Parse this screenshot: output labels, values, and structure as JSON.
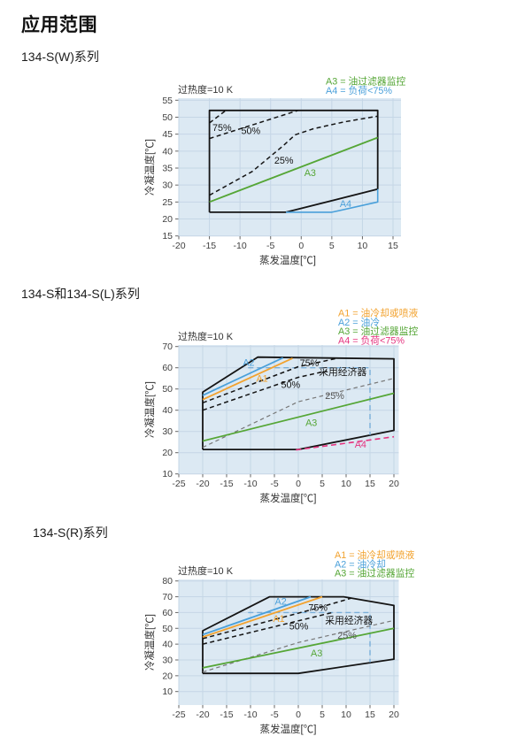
{
  "page": {
    "title": "应用范围"
  },
  "sections": [
    {
      "heading": "134-S(W)系列"
    },
    {
      "heading": "134-S和134-S(L)系列"
    },
    {
      "heading": "134-S(R)系列"
    }
  ],
  "colors": {
    "green": "#55a636",
    "blue": "#4aa0da",
    "orange": "#f2a22e",
    "magenta": "#e5337f",
    "economizer_blue": "#79aed9",
    "gray_dash": "#777777",
    "line_black": "#141414",
    "panel_bg": "#dce9f3",
    "grid": "#c5d6e6",
    "text": "#404040"
  },
  "chart_data": [
    {
      "name": "134-S(W)",
      "type": "line",
      "title": "过热度=10 K",
      "xlabel": "蒸发温度[℃]",
      "ylabel": "冷凝温度[℃]",
      "xlim": [
        -20,
        15
      ],
      "ylim": [
        15,
        55
      ],
      "x_ticks": [
        -20,
        -15,
        -10,
        -5,
        0,
        5,
        10,
        15
      ],
      "y_ticks": [
        15,
        20,
        25,
        30,
        35,
        40,
        45,
        50,
        55
      ],
      "grid": true,
      "legend_position": "top-right",
      "legend": [
        {
          "label": "A3 = 油过滤器监控",
          "color": "#55a636"
        },
        {
          "label": "A4 = 负荷<75%",
          "color": "#4aa0da"
        }
      ],
      "envelope": [
        [
          -15,
          22
        ],
        [
          -15,
          52
        ],
        [
          12.5,
          52
        ],
        [
          12.5,
          28.8
        ],
        [
          -2.5,
          22
        ],
        [
          -15,
          22
        ]
      ],
      "series": [
        {
          "name": "load-75pct-limit",
          "style": "dashed",
          "color": "#141414",
          "dash": "5,3.5",
          "w": 1.5,
          "points": [
            [
              -15,
              48.3
            ],
            [
              -12.3,
              52
            ]
          ]
        },
        {
          "name": "load-50pct-limit",
          "style": "dashed",
          "color": "#141414",
          "dash": "5,3.5",
          "w": 1.5,
          "points": [
            [
              -15,
              43.7
            ],
            [
              -0.5,
              52
            ]
          ]
        },
        {
          "name": "load-25pct-limit",
          "style": "dashed",
          "color": "#141414",
          "dash": "5,3.5",
          "w": 1.5,
          "points": [
            [
              -15,
              27
            ],
            [
              -8,
              34
            ],
            [
              -3,
              41.5
            ],
            [
              -1,
              44.8
            ],
            [
              2,
              46.6
            ],
            [
              7,
              48.6
            ],
            [
              12.5,
              50.3
            ]
          ]
        },
        {
          "name": "A3-oil-filter-monitoring",
          "style": "solid",
          "color": "#55a636",
          "w": 1.8,
          "points": [
            [
              -15,
              25
            ],
            [
              12.5,
              44
            ]
          ]
        },
        {
          "name": "A4-load-below-75pct",
          "style": "solid",
          "color": "#4aa0da",
          "w": 1.6,
          "points": [
            [
              -2.5,
              22
            ],
            [
              5,
              22
            ],
            [
              12.5,
              25
            ],
            [
              12.5,
              28.8
            ]
          ]
        }
      ],
      "labels": [
        {
          "text": "75%",
          "x": -14.5,
          "y": 46.0,
          "color": "#141414"
        },
        {
          "text": "50%",
          "x": -9.8,
          "y": 45.0,
          "color": "#141414"
        },
        {
          "text": "25%",
          "x": -4.4,
          "y": 36.3,
          "color": "#141414"
        },
        {
          "text": "A3",
          "x": 0.5,
          "y": 32.6,
          "color": "#55a636"
        },
        {
          "text": "A4",
          "x": 6.3,
          "y": 23.5,
          "color": "#4aa0da"
        }
      ]
    },
    {
      "name": "134-S / 134-S(L)",
      "type": "line",
      "title": "过热度=10 K",
      "xlabel": "蒸发温度[℃]",
      "ylabel": "冷凝温度[℃]",
      "xlim": [
        -25,
        20
      ],
      "ylim": [
        10,
        70
      ],
      "x_ticks": [
        -25,
        -20,
        -15,
        -10,
        -5,
        0,
        5,
        10,
        15,
        20
      ],
      "y_ticks": [
        10,
        20,
        30,
        40,
        50,
        60,
        70
      ],
      "grid": true,
      "legend_position": "top-right",
      "legend": [
        {
          "label": "A1 = 油冷却或喷液",
          "color": "#f2a22e"
        },
        {
          "label": "A2 = 油冷",
          "color": "#4aa0da"
        },
        {
          "label": "A3 = 油过滤器监控",
          "color": "#55a636"
        },
        {
          "label": "A4 = 负荷<75%",
          "color": "#e5337f"
        }
      ],
      "envelope": [
        [
          -20,
          21.5
        ],
        [
          -20,
          48.5
        ],
        [
          -8.5,
          65
        ],
        [
          20,
          64.2
        ],
        [
          20,
          30.5
        ],
        [
          0,
          21.5
        ],
        [
          -20,
          21.5
        ]
      ],
      "series": [
        {
          "name": "economizer-boundary",
          "style": "dashed",
          "color": "#79aed9",
          "dash": "6,4",
          "w": 1.4,
          "points": [
            [
              -10.5,
              60
            ],
            [
              15,
              60
            ],
            [
              15,
              28.3
            ]
          ]
        },
        {
          "name": "A2-oil-cooling",
          "style": "solid",
          "color": "#4aa0da",
          "w": 1.8,
          "points": [
            [
              -20,
              47
            ],
            [
              -3.2,
              64.7
            ]
          ]
        },
        {
          "name": "A1-oil-cooling-or-liquid-injection",
          "style": "solid",
          "color": "#f2a22e",
          "w": 1.8,
          "points": [
            [
              -20,
              45
            ],
            [
              -1.2,
              64.5
            ]
          ]
        },
        {
          "name": "load-75pct-limit",
          "style": "dashed",
          "color": "#141414",
          "dash": "5,3.5",
          "w": 1.5,
          "points": [
            [
              -20,
              43.5
            ],
            [
              0,
              60.5
            ],
            [
              7.8,
              64.3
            ]
          ]
        },
        {
          "name": "load-50pct-limit",
          "style": "dashed",
          "color": "#141414",
          "dash": "5,3.5",
          "w": 1.5,
          "points": [
            [
              -20,
              40
            ],
            [
              0,
              55.5
            ],
            [
              6,
              58.5
            ]
          ]
        },
        {
          "name": "load-25pct-limit",
          "style": "dashed",
          "color": "#777777",
          "dash": "4.5,3.5",
          "w": 1.2,
          "points": [
            [
              -20,
              22.5
            ],
            [
              0,
              44
            ],
            [
              20,
              55
            ]
          ]
        },
        {
          "name": "A3-oil-filter-monitoring",
          "style": "solid",
          "color": "#55a636",
          "w": 1.8,
          "points": [
            [
              -20,
              25.5
            ],
            [
              20,
              48
            ]
          ]
        },
        {
          "name": "A4-load-below-75pct",
          "style": "dashed",
          "color": "#e5337f",
          "dash": "6,4",
          "w": 1.6,
          "points": [
            [
              -0.5,
              21.3
            ],
            [
              20,
              27.5
            ]
          ]
        }
      ],
      "labels": [
        {
          "text": "A2",
          "x": -11.6,
          "y": 60.9,
          "color": "#4aa0da"
        },
        {
          "text": "A1",
          "x": -8.8,
          "y": 53.5,
          "color": "#f2a22e"
        },
        {
          "text": "75%",
          "x": 0.3,
          "y": 60.7,
          "color": "#141414"
        },
        {
          "text": "50%",
          "x": -3.6,
          "y": 50.5,
          "color": "#141414"
        },
        {
          "text": "采用经济器",
          "x": 4.3,
          "y": 56.6,
          "color": "#141414"
        },
        {
          "text": "25%",
          "x": 5.6,
          "y": 45.3,
          "color": "#555555"
        },
        {
          "text": "A3",
          "x": 1.5,
          "y": 32.5,
          "color": "#55a636"
        },
        {
          "text": "A4",
          "x": 11.8,
          "y": 22.3,
          "color": "#e5337f"
        }
      ]
    },
    {
      "name": "134-S(R)",
      "type": "line",
      "title": "过热度=10 K",
      "xlabel": "蒸发温度[℃]",
      "ylabel": "冷凝温度[℃]",
      "xlim": [
        -25,
        20
      ],
      "ylim": [
        0,
        80
      ],
      "x_ticks": [
        -25,
        -20,
        -15,
        -10,
        -5,
        0,
        5,
        10,
        15,
        20
      ],
      "y_ticks": [
        10,
        20,
        30,
        40,
        50,
        60,
        70,
        80
      ],
      "grid": true,
      "legend_position": "top-right",
      "legend": [
        {
          "label": "A1 = 油冷却或喷液",
          "color": "#f2a22e"
        },
        {
          "label": "A2 = 油冷却",
          "color": "#4aa0da"
        },
        {
          "label": "A3 = 油过滤器监控",
          "color": "#55a636"
        }
      ],
      "envelope": [
        [
          -20,
          21.5
        ],
        [
          -20,
          48.5
        ],
        [
          -6,
          70
        ],
        [
          9.5,
          70
        ],
        [
          20,
          64.5
        ],
        [
          20,
          30.5
        ],
        [
          0,
          21.5
        ],
        [
          -20,
          21.5
        ]
      ],
      "series": [
        {
          "name": "economizer-boundary",
          "style": "dashed",
          "color": "#79aed9",
          "dash": "6,4",
          "w": 1.4,
          "points": [
            [
              -10.5,
              60
            ],
            [
              15,
              60
            ],
            [
              15,
              28.5
            ]
          ]
        },
        {
          "name": "A2-oil-cooling",
          "style": "solid",
          "color": "#4aa0da",
          "w": 1.8,
          "points": [
            [
              -20,
              46
            ],
            [
              2.6,
              70
            ]
          ]
        },
        {
          "name": "A1-oil-cooling-or-liquid-injection",
          "style": "solid",
          "color": "#f2a22e",
          "w": 1.8,
          "points": [
            [
              -20,
              44.5
            ],
            [
              5,
              70
            ]
          ]
        },
        {
          "name": "load-75pct-limit",
          "style": "dashed",
          "color": "#141414",
          "dash": "5,3.5",
          "w": 1.5,
          "points": [
            [
              -20,
              43.5
            ],
            [
              3,
              62
            ],
            [
              11,
              69
            ]
          ]
        },
        {
          "name": "load-50pct-limit",
          "style": "dashed",
          "color": "#141414",
          "dash": "5,3.5",
          "w": 1.5,
          "points": [
            [
              -20,
              40
            ],
            [
              7.5,
              60.3
            ]
          ]
        },
        {
          "name": "load-25pct-limit",
          "style": "dashed",
          "color": "#777777",
          "dash": "4.5,3.5",
          "w": 1.2,
          "points": [
            [
              -20,
              22.3
            ],
            [
              0,
              41
            ],
            [
              20,
              55
            ]
          ]
        },
        {
          "name": "A3-oil-filter-monitoring",
          "style": "solid",
          "color": "#55a636",
          "w": 1.8,
          "points": [
            [
              -20,
              25
            ],
            [
              20,
              50
            ]
          ]
        }
      ],
      "labels": [
        {
          "text": "A2",
          "x": -4.9,
          "y": 64.9,
          "color": "#4aa0da"
        },
        {
          "text": "A1",
          "x": -5.3,
          "y": 54.2,
          "color": "#f2a22e"
        },
        {
          "text": "75%",
          "x": 2.1,
          "y": 61.2,
          "color": "#141414"
        },
        {
          "text": "50%",
          "x": -1.9,
          "y": 49.2,
          "color": "#141414"
        },
        {
          "text": "采用经济器",
          "x": 5.6,
          "y": 52.9,
          "color": "#141414"
        },
        {
          "text": "25%",
          "x": 8.2,
          "y": 43.5,
          "color": "#555555"
        },
        {
          "text": "A3",
          "x": 2.6,
          "y": 32.2,
          "color": "#55a636"
        }
      ]
    }
  ]
}
